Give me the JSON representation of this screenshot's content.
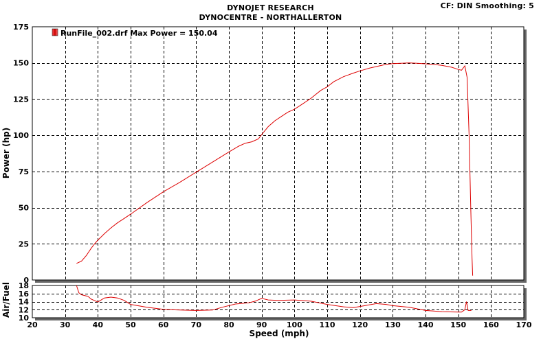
{
  "header": {
    "title_line1": "DYNOJET RESEARCH",
    "title_line2": "DYNOCENTRE - NORTHALLERTON",
    "cf_info": "CF: DIN  Smoothing: 5"
  },
  "colors": {
    "series": "#dd0000",
    "grid": "#000000",
    "frame": "#000000",
    "background": "#ffffff"
  },
  "chart_data": [
    {
      "type": "line",
      "title": "",
      "xlabel": "",
      "ylabel": "Power (hp)",
      "xlim": [
        20,
        170
      ],
      "ylim": [
        0,
        175
      ],
      "grid": true,
      "legend_position": "top-left",
      "xticks": [
        20,
        30,
        40,
        50,
        60,
        70,
        80,
        90,
        100,
        110,
        120,
        130,
        140,
        150,
        160,
        170
      ],
      "yticks": [
        0,
        25,
        50,
        75,
        100,
        125,
        150,
        175
      ],
      "series": [
        {
          "name": "RunFile_002.drf Max Power = 150.04",
          "x": [
            33.5,
            35,
            36.5,
            38,
            39,
            40,
            42,
            44,
            46,
            48,
            50,
            55,
            60,
            65,
            70,
            75,
            80,
            83,
            85,
            87,
            88,
            89,
            90,
            92,
            94,
            96,
            98,
            100,
            102,
            105,
            108,
            110,
            112,
            115,
            118,
            120,
            123,
            125,
            128,
            130,
            133,
            135,
            137,
            140,
            143,
            145,
            148,
            150,
            151,
            152,
            152.7,
            153.3,
            153.8,
            154.2,
            154.4
          ],
          "y": [
            11.5,
            13,
            17,
            22,
            25,
            27.5,
            32,
            36,
            39.5,
            42.5,
            45.5,
            53.5,
            61,
            67.5,
            74.5,
            81.5,
            88.5,
            92.5,
            94.5,
            95.5,
            96.5,
            97.5,
            100.5,
            106,
            110,
            113,
            116,
            118,
            121,
            125.5,
            131,
            133.5,
            137,
            140.5,
            143,
            144.5,
            146.5,
            147.5,
            149,
            149.5,
            149.8,
            150.04,
            149.8,
            149.4,
            148.8,
            148.3,
            147,
            145.5,
            145,
            148,
            140,
            100,
            50,
            15,
            3
          ]
        }
      ]
    },
    {
      "type": "line",
      "title": "",
      "xlabel": "Speed (mph)",
      "ylabel": "Air/Fuel",
      "xlim": [
        20,
        170
      ],
      "ylim": [
        10,
        18
      ],
      "grid": true,
      "xticks": [
        20,
        30,
        40,
        50,
        60,
        70,
        80,
        90,
        100,
        110,
        120,
        130,
        140,
        150,
        160,
        170
      ],
      "yticks": [
        10,
        12,
        14,
        16,
        18
      ],
      "series": [
        {
          "name": "",
          "x": [
            33.5,
            34.2,
            35,
            37,
            38,
            40,
            42,
            44,
            46,
            48,
            50,
            55,
            60,
            65,
            70,
            75,
            78,
            82,
            86,
            88,
            90,
            92,
            95,
            100,
            105,
            110,
            115,
            118,
            120,
            125,
            128,
            130,
            135,
            140,
            145,
            150,
            151,
            152,
            152.5,
            153,
            154
          ],
          "y": [
            18,
            16.2,
            15.7,
            15.3,
            14.6,
            13.9,
            14.9,
            15.1,
            14.9,
            14.3,
            13.3,
            12.6,
            12.1,
            11.9,
            11.8,
            11.9,
            12.6,
            13.4,
            13.7,
            14.1,
            14.8,
            14.4,
            14.3,
            14.4,
            14.1,
            13.3,
            12.7,
            12.5,
            12.8,
            13.5,
            13.3,
            13.0,
            12.6,
            11.8,
            11.5,
            11.4,
            11.4,
            12,
            14,
            11.8,
            11.8
          ]
        }
      ]
    }
  ]
}
